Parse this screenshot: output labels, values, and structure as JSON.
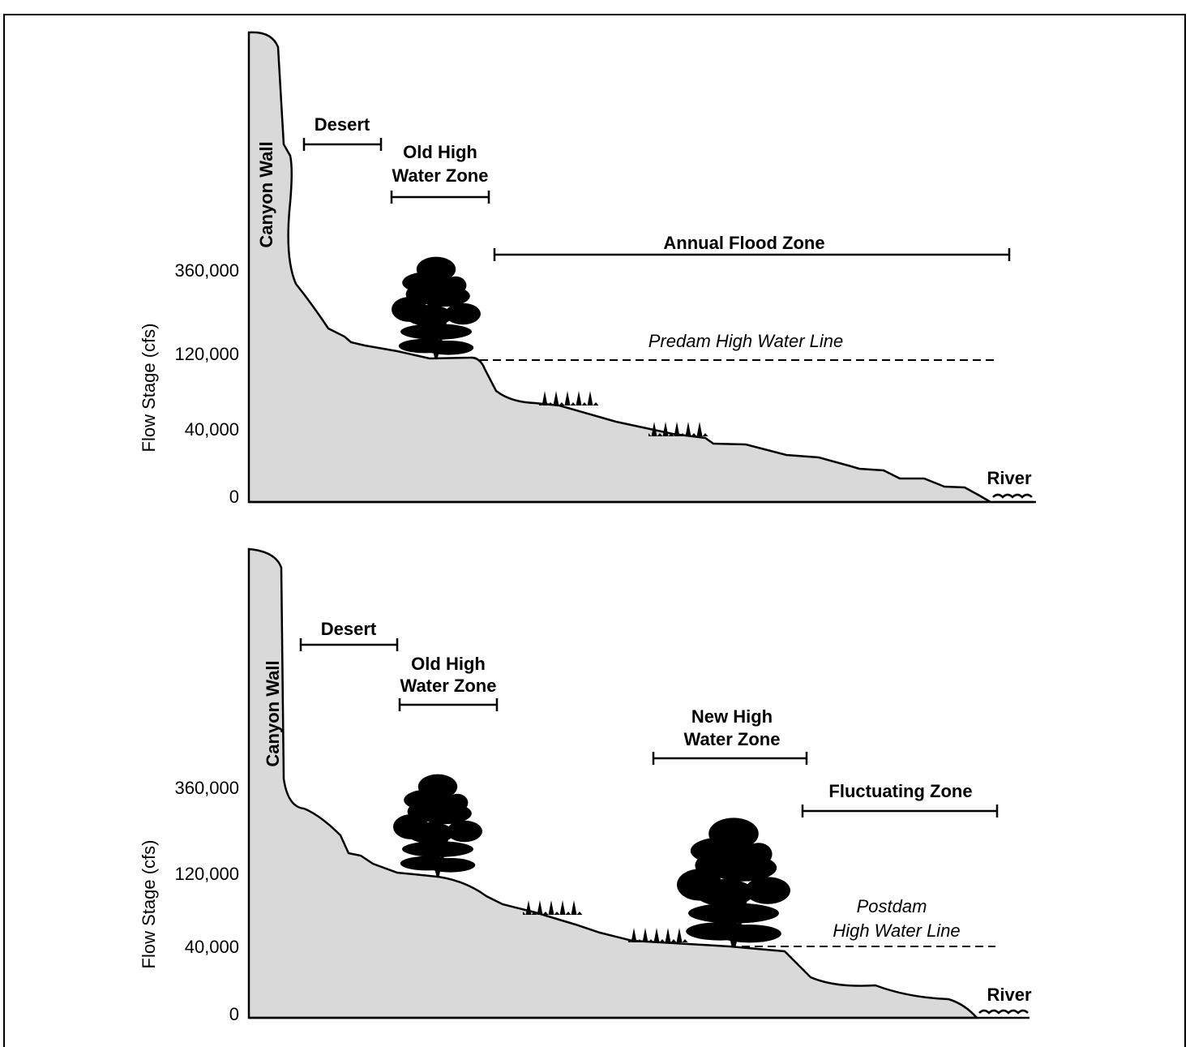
{
  "panels": [
    {
      "y_axis_label": "Flow Stage (cfs)",
      "y_ticks": [
        "360,000",
        "120,000",
        "40,000",
        "0"
      ],
      "canyon_wall": "Canyon Wall",
      "desert": "Desert",
      "old_high_water_zone": [
        "Old High",
        "Water Zone"
      ],
      "annual_flood_zone": "Annual Flood Zone",
      "high_water_line": [
        "Predam High Water Line"
      ],
      "river": "River"
    },
    {
      "y_axis_label": "Flow Stage (cfs)",
      "y_ticks": [
        "360,000",
        "120,000",
        "40,000",
        "0"
      ],
      "canyon_wall": "Canyon Wall",
      "desert": "Desert",
      "old_high_water_zone": [
        "Old High",
        "Water Zone"
      ],
      "new_high_water_zone": [
        "New High",
        "Water Zone"
      ],
      "fluctuating_zone": "Fluctuating Zone",
      "high_water_line": [
        "Postdam",
        "High Water Line"
      ],
      "river": "River"
    }
  ]
}
